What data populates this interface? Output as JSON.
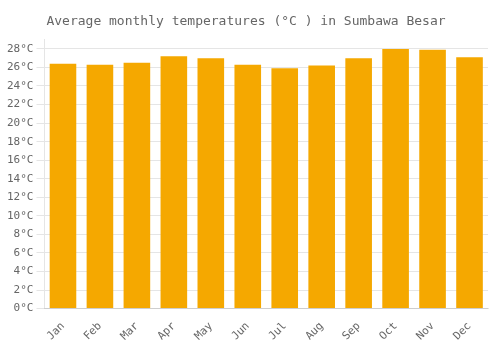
{
  "chart_data": {
    "type": "bar",
    "title": "Average monthly temperatures (°C ) in Sumbawa Besar",
    "categories": [
      "Jan",
      "Feb",
      "Mar",
      "Apr",
      "May",
      "Jun",
      "Jul",
      "Aug",
      "Sep",
      "Oct",
      "Nov",
      "Dec"
    ],
    "values": [
      26.4,
      26.3,
      26.5,
      27.2,
      27.0,
      26.3,
      25.9,
      26.2,
      27.0,
      28.0,
      27.9,
      27.1
    ],
    "color": "#F5A800",
    "ylim": [
      0,
      29
    ],
    "yticks": [
      {
        "value": 0,
        "label": "0°C"
      },
      {
        "value": 2,
        "label": "2°C"
      },
      {
        "value": 4,
        "label": "4°C"
      },
      {
        "value": 6,
        "label": "6°C"
      },
      {
        "value": 8,
        "label": "8°C"
      },
      {
        "value": 10,
        "label": "10°C"
      },
      {
        "value": 12,
        "label": "12°C"
      },
      {
        "value": 14,
        "label": "14°C"
      },
      {
        "value": 16,
        "label": "16°C"
      },
      {
        "value": 18,
        "label": "18°C"
      },
      {
        "value": 20,
        "label": "20°C"
      },
      {
        "value": 22,
        "label": "22°C"
      },
      {
        "value": 24,
        "label": "24°C"
      },
      {
        "value": 26,
        "label": "26°C"
      },
      {
        "value": 28,
        "label": "28°C"
      }
    ],
    "grid": true
  }
}
